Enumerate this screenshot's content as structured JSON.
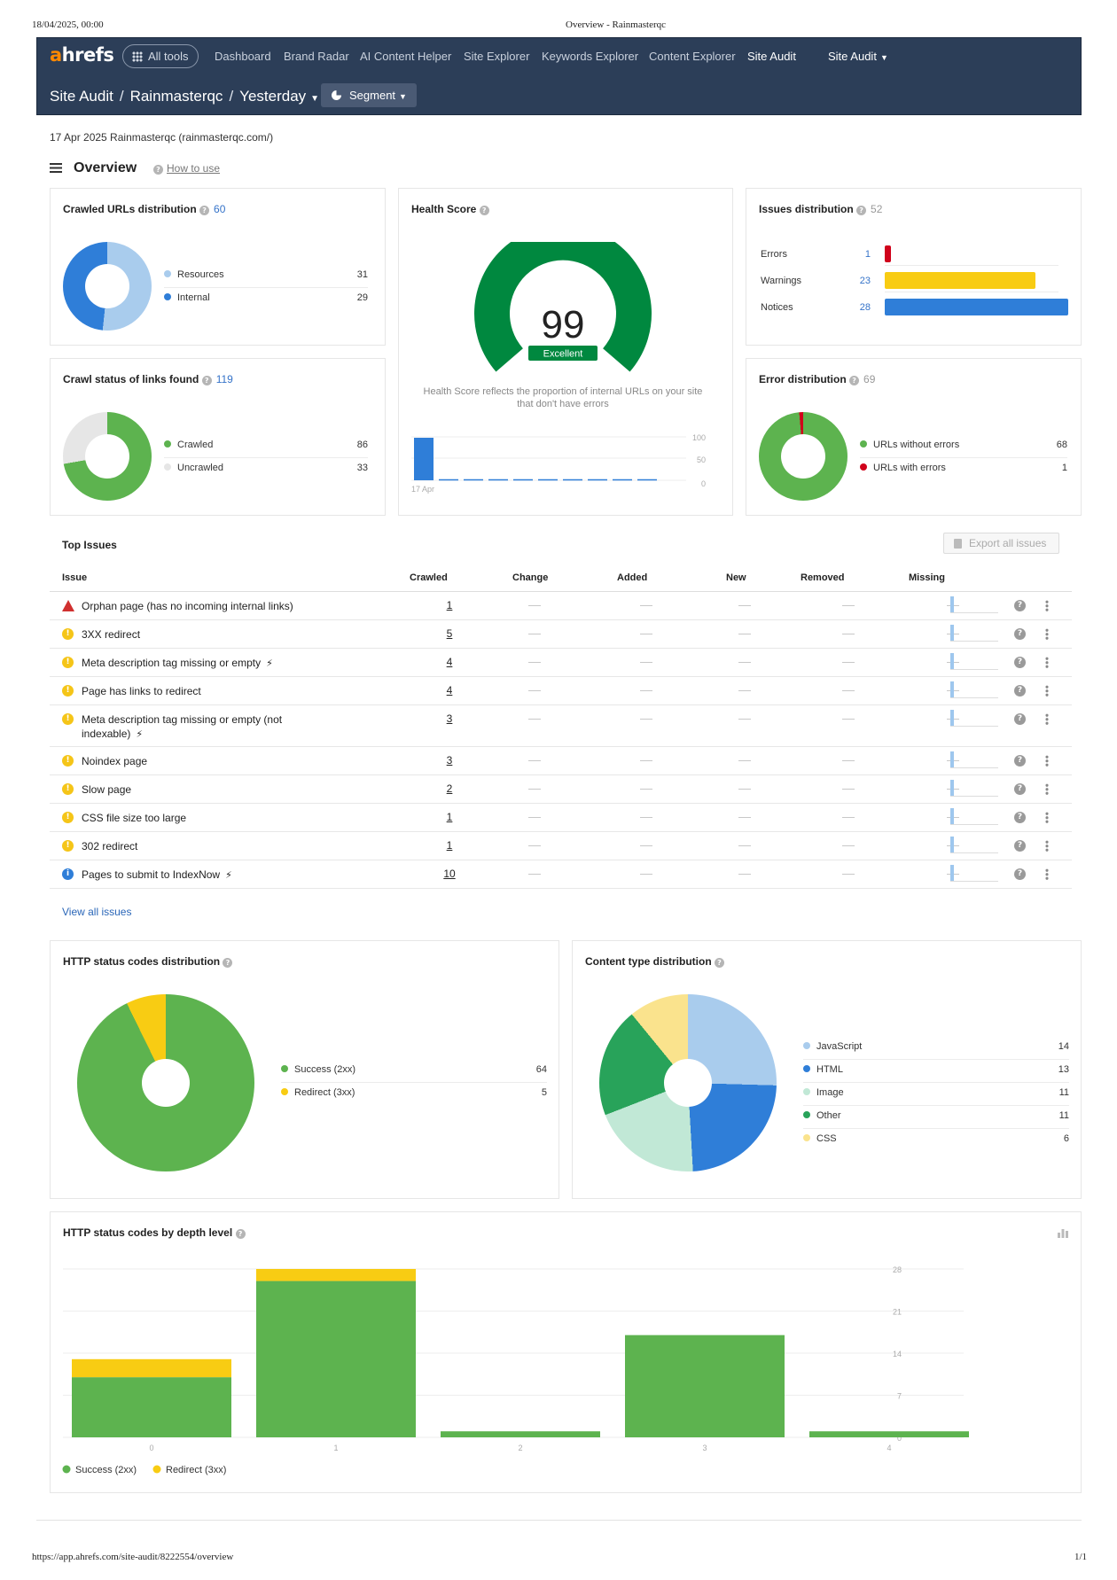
{
  "print": {
    "date": "18/04/2025, 00:00",
    "doc_title": "Overview - Rainmasterqc",
    "url": "https://app.ahrefs.com/site-audit/8222554/overview",
    "page": "1/1"
  },
  "header": {
    "logo_a": "a",
    "logo_rest": "hrefs",
    "all_tools": "All tools",
    "nav": [
      "Dashboard",
      "Brand Radar",
      "AI Content Helper",
      "Site Explorer",
      "Keywords Explorer",
      "Content Explorer",
      "Site Audit"
    ],
    "site_audit_menu": "Site Audit",
    "breadcrumb": [
      "Site Audit",
      "Rainmasterqc",
      "Yesterday"
    ],
    "segment": "Segment"
  },
  "project_line": "17 Apr 2025 Rainmasterqc (rainmasterqc.com/)",
  "page_title": "Overview",
  "how_to_use": "How to use",
  "crawled_urls": {
    "title": "Crawled URLs distribution",
    "count": "60",
    "items": [
      {
        "label": "Resources",
        "value": 31,
        "color": "#a9cced"
      },
      {
        "label": "Internal",
        "value": 29,
        "color": "#2f7ed8"
      }
    ]
  },
  "crawl_status": {
    "title": "Crawl status of links found",
    "count": "119",
    "items": [
      {
        "label": "Crawled",
        "value": 86,
        "color": "#5db34f"
      },
      {
        "label": "Uncrawled",
        "value": 33,
        "color": "#e6e6e6"
      }
    ]
  },
  "health_score": {
    "title": "Health Score",
    "score": "99",
    "rating": "Excellent",
    "description": "Health Score reflects the proportion of internal URLs on your site that don't have errors",
    "axis_labels": [
      "100",
      "50",
      "0"
    ],
    "date_label": "17 Apr"
  },
  "issues_distribution": {
    "title": "Issues distribution",
    "count": "52",
    "rows": [
      {
        "label": "Errors",
        "value": "1",
        "color": "#d0021b"
      },
      {
        "label": "Warnings",
        "value": "23",
        "color": "#f8cc13"
      },
      {
        "label": "Notices",
        "value": "28",
        "color": "#2f7ed8"
      }
    ]
  },
  "error_distribution": {
    "title": "Error distribution",
    "count": "69",
    "items": [
      {
        "label": "URLs without errors",
        "value": 68,
        "color": "#5db34f"
      },
      {
        "label": "URLs with errors",
        "value": 1,
        "color": "#d0021b"
      }
    ]
  },
  "top_issues": {
    "title": "Top Issues",
    "export_label": "Export all issues",
    "columns": [
      "Issue",
      "Crawled",
      "Change",
      "Added",
      "New",
      "Removed",
      "Missing"
    ],
    "rows": [
      {
        "type": "error",
        "name": "Orphan page (has no incoming internal links)",
        "crawled": "1",
        "bolt": false
      },
      {
        "type": "warning",
        "name": "3XX redirect",
        "crawled": "5",
        "bolt": false
      },
      {
        "type": "warning",
        "name": "Meta description tag missing or empty",
        "crawled": "4",
        "bolt": true
      },
      {
        "type": "warning",
        "name": "Page has links to redirect",
        "crawled": "4",
        "bolt": false
      },
      {
        "type": "warning",
        "name": "Meta description tag missing or empty (not indexable)",
        "crawled": "3",
        "bolt": true
      },
      {
        "type": "warning",
        "name": "Noindex page",
        "crawled": "3",
        "bolt": false
      },
      {
        "type": "warning",
        "name": "Slow page",
        "crawled": "2",
        "bolt": false
      },
      {
        "type": "warning",
        "name": "CSS file size too large",
        "crawled": "1",
        "bolt": false
      },
      {
        "type": "warning",
        "name": "302 redirect",
        "crawled": "1",
        "bolt": false
      },
      {
        "type": "notice",
        "name": "Pages to submit to IndexNow",
        "crawled": "10",
        "bolt": true
      }
    ],
    "view_all": "View all issues"
  },
  "http_status": {
    "title": "HTTP status codes distribution",
    "items": [
      {
        "label": "Success (2xx)",
        "value": 64,
        "color": "#5db34f"
      },
      {
        "label": "Redirect (3xx)",
        "value": 5,
        "color": "#f8cc13"
      }
    ]
  },
  "content_type": {
    "title": "Content type distribution",
    "items": [
      {
        "label": "JavaScript",
        "value": 14,
        "color": "#a9cced"
      },
      {
        "label": "HTML",
        "value": 13,
        "color": "#2f7ed8"
      },
      {
        "label": "Image",
        "value": 11,
        "color": "#c1e8d6"
      },
      {
        "label": "Other",
        "value": 11,
        "color": "#28a35a"
      },
      {
        "label": "CSS",
        "value": 6,
        "color": "#fae38d"
      }
    ]
  },
  "chart_data": {
    "type": "bar",
    "title": "HTTP status codes by depth level",
    "categories": [
      "0",
      "1",
      "2",
      "3",
      "4"
    ],
    "series": [
      {
        "name": "Success (2xx)",
        "values": [
          10,
          26,
          1,
          17,
          1
        ],
        "color": "#5db34f"
      },
      {
        "name": "Redirect (3xx)",
        "values": [
          3,
          2,
          0,
          0,
          0
        ],
        "color": "#f8cc13"
      }
    ],
    "stacked": true,
    "ylim": [
      0,
      28
    ],
    "yticks": [
      "28",
      "21",
      "14",
      "7",
      "0"
    ],
    "grid": true,
    "legend_position": "bottom-left"
  }
}
